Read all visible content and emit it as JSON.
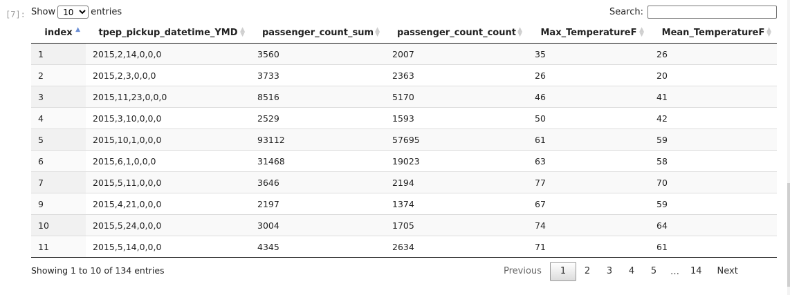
{
  "cell_prompt": "[7]:",
  "length_menu": {
    "show_label": "Show",
    "selected": "10",
    "entries_label": "entries"
  },
  "search": {
    "label": "Search:",
    "value": ""
  },
  "columns": [
    "index",
    "tpep_pickup_datetime_YMD",
    "passenger_count_sum",
    "passenger_count_count",
    "Max_TemperatureF",
    "Mean_TemperatureF"
  ],
  "rows": [
    [
      "1",
      "2015,2,14,0,0,0",
      "3560",
      "2007",
      "35",
      "26"
    ],
    [
      "2",
      "2015,2,3,0,0,0",
      "3733",
      "2363",
      "26",
      "20"
    ],
    [
      "3",
      "2015,11,23,0,0,0",
      "8516",
      "5170",
      "46",
      "41"
    ],
    [
      "4",
      "2015,3,10,0,0,0",
      "2529",
      "1593",
      "50",
      "42"
    ],
    [
      "5",
      "2015,10,1,0,0,0",
      "93112",
      "57695",
      "61",
      "59"
    ],
    [
      "6",
      "2015,6,1,0,0,0",
      "31468",
      "19023",
      "63",
      "58"
    ],
    [
      "7",
      "2015,5,11,0,0,0",
      "3646",
      "2194",
      "77",
      "70"
    ],
    [
      "9",
      "2015,4,21,0,0,0",
      "2197",
      "1374",
      "67",
      "59"
    ],
    [
      "10",
      "2015,5,24,0,0,0",
      "3004",
      "1705",
      "74",
      "64"
    ],
    [
      "11",
      "2015,5,14,0,0,0",
      "4345",
      "2634",
      "71",
      "61"
    ]
  ],
  "info": "Showing 1 to 10 of 134 entries",
  "pagination": {
    "previous": "Previous",
    "pages": [
      "1",
      "2",
      "3",
      "4",
      "5"
    ],
    "ellipsis": "…",
    "last": "14",
    "next": "Next",
    "current": "1"
  },
  "sort_indicator": {
    "up": "▲",
    "down": "▼"
  }
}
